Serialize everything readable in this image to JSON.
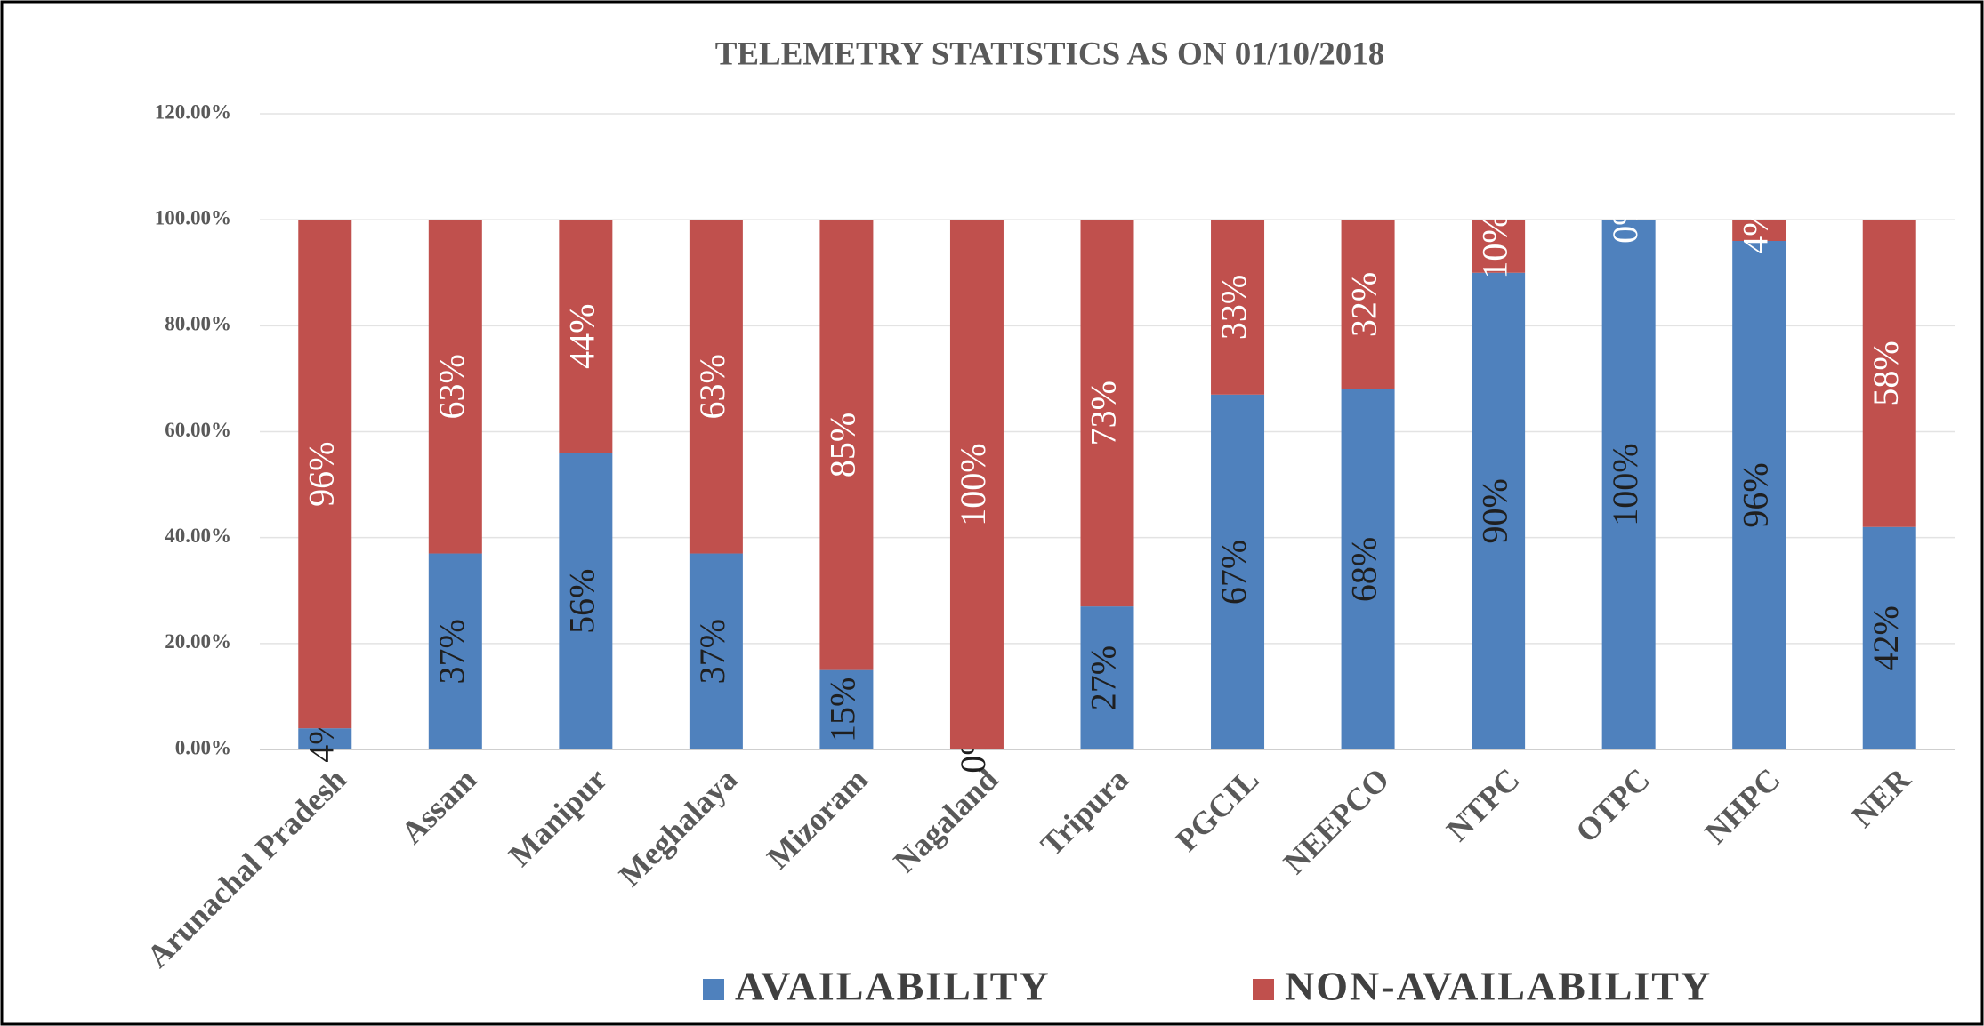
{
  "chart_data": {
    "type": "stacked_bar",
    "title": "TELEMETRY STATISTICS  AS ON 01/10/2018",
    "categories": [
      "Arunachal Pradesh",
      "Assam",
      "Manipur",
      "Meghalaya",
      "Mizoram",
      "Nagaland",
      "Tripura",
      "PGCIL",
      "NEEPCO",
      "NTPC",
      "OTPC",
      "NHPC",
      "NER"
    ],
    "series": [
      {
        "name": "AVAILABILITY",
        "color": "#4f81bd",
        "values": [
          4,
          37,
          56,
          37,
          15,
          0,
          27,
          67,
          68,
          90,
          100,
          96,
          42
        ],
        "value_labels": [
          "4%",
          "37%",
          "56%",
          "37%",
          "15%",
          "0%",
          "27%",
          "67%",
          "68%",
          "90%",
          "100%",
          "96%",
          "42%"
        ]
      },
      {
        "name": "NON-AVAILABILITY",
        "color": "#c0504d",
        "values": [
          96,
          63,
          44,
          63,
          85,
          100,
          73,
          33,
          32,
          10,
          0,
          4,
          58
        ],
        "value_labels": [
          "96%",
          "63%",
          "44%",
          "63%",
          "85%",
          "100%",
          "73%",
          "33%",
          "32%",
          "10%",
          "0%",
          "4%",
          "58%"
        ]
      }
    ],
    "ylim": [
      0,
      120
    ],
    "yticks": [
      {
        "value": 0,
        "label": "0.00%"
      },
      {
        "value": 20,
        "label": "20.00%"
      },
      {
        "value": 40,
        "label": "40.00%"
      },
      {
        "value": 60,
        "label": "60.00%"
      },
      {
        "value": 80,
        "label": "80.00%"
      },
      {
        "value": 100,
        "label": "100.00%"
      },
      {
        "value": 120,
        "label": "120.00%"
      }
    ],
    "grid": true,
    "legend": "bottom"
  }
}
